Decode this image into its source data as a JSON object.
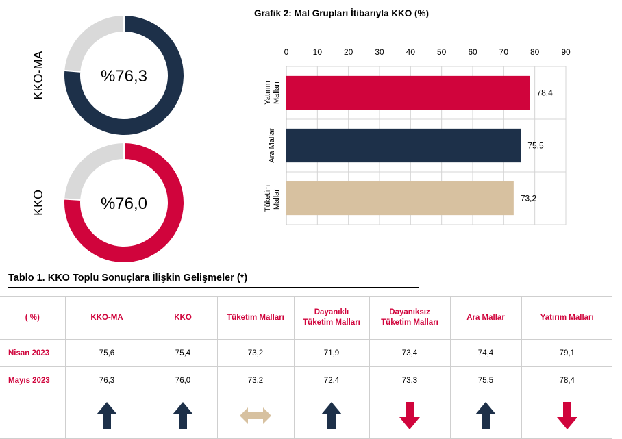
{
  "colors": {
    "navy": "#1d3049",
    "red": "#d0043c",
    "tan": "#d7c1a0",
    "light_gray": "#d9d9d9"
  },
  "donuts": [
    {
      "label": "KKO-MA",
      "value_label": "%76,3",
      "value": 76.3,
      "color": "#1d3049"
    },
    {
      "label": "KKO",
      "value_label": "%76,0",
      "value": 76.0,
      "color": "#d0043c"
    }
  ],
  "bar_chart_title": "Grafik 2: Mal Grupları İtibarıyla KKO (%)",
  "chart_data": [
    {
      "type": "pie",
      "labels": [
        "KKO-MA",
        ""
      ],
      "values": [
        76.3,
        23.7
      ],
      "center_label": "%76,3"
    },
    {
      "type": "pie",
      "labels": [
        "KKO",
        ""
      ],
      "values": [
        76.0,
        24.0
      ],
      "center_label": "%76,0"
    },
    {
      "type": "bar",
      "orientation": "horizontal",
      "title": "Grafik 2: Mal Grupları İtibarıyla KKO (%)",
      "categories": [
        "Yatırım\nMalları",
        "Ara Mallar",
        "Tüketim\nMalları"
      ],
      "values": [
        78.4,
        75.5,
        73.2
      ],
      "value_labels": [
        "78,4",
        "75,5",
        "73,2"
      ],
      "colors": [
        "#d0043c",
        "#1d3049",
        "#d7c1a0"
      ],
      "xlim": [
        0,
        90
      ],
      "xticks": [
        0,
        10,
        20,
        30,
        40,
        50,
        60,
        70,
        80,
        90
      ],
      "axis_position": "top",
      "grid": true
    }
  ],
  "table": {
    "title": "Tablo 1. KKO Toplu Sonuçlara İlişkin Gelişmeler (*)",
    "headers": [
      "( %)",
      "KKO-MA",
      "KKO",
      "Tüketim Malları",
      "Dayanıklı\nTüketim Malları",
      "Dayanıksız\nTüketim Malları",
      "Ara Mallar",
      "Yatırım Malları"
    ],
    "rows": [
      {
        "label": "Nisan 2023",
        "values": [
          "75,6",
          "75,4",
          "73,2",
          "71,9",
          "73,4",
          "74,4",
          "79,1"
        ]
      },
      {
        "label": "Mayıs 2023",
        "values": [
          "76,3",
          "76,0",
          "73,2",
          "72,4",
          "73,3",
          "75,5",
          "78,4"
        ]
      }
    ],
    "trends": [
      {
        "direction": "up",
        "icon": "up-arrow-icon",
        "color": "#1d3049"
      },
      {
        "direction": "up",
        "icon": "up-arrow-icon",
        "color": "#1d3049"
      },
      {
        "direction": "flat",
        "icon": "double-arrow-icon",
        "color": "#d7c1a0"
      },
      {
        "direction": "up",
        "icon": "up-arrow-icon",
        "color": "#1d3049"
      },
      {
        "direction": "down",
        "icon": "down-arrow-icon",
        "color": "#d0043c"
      },
      {
        "direction": "up",
        "icon": "up-arrow-icon",
        "color": "#1d3049"
      },
      {
        "direction": "down",
        "icon": "down-arrow-icon",
        "color": "#d0043c"
      }
    ]
  }
}
